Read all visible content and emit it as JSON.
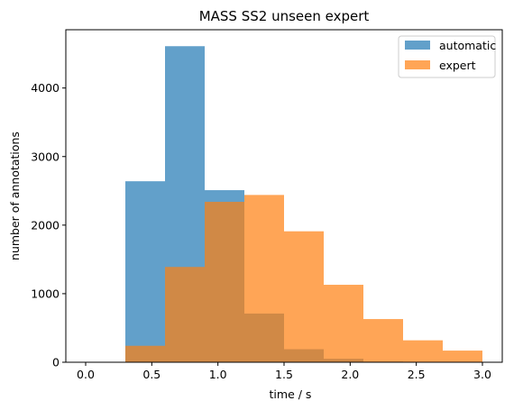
{
  "chart_data": {
    "type": "bar",
    "subtype": "overlapping-histogram",
    "title": "MASS SS2 unseen expert",
    "xlabel": "time / s",
    "ylabel": "number of annotations",
    "xlim": [
      -0.15,
      3.15
    ],
    "ylim": [
      0,
      4850
    ],
    "xticks": [
      0.0,
      0.5,
      1.0,
      1.5,
      2.0,
      2.5,
      3.0
    ],
    "xtick_labels": [
      "0.0",
      "0.5",
      "1.0",
      "1.5",
      "2.0",
      "2.5",
      "3.0"
    ],
    "yticks": [
      0,
      1000,
      2000,
      3000,
      4000
    ],
    "ytick_labels": [
      "0",
      "1000",
      "2000",
      "3000",
      "4000"
    ],
    "bin_edges": [
      0.0,
      0.3,
      0.6,
      0.9,
      1.2,
      1.5,
      1.8,
      2.1,
      2.4,
      2.7,
      3.0
    ],
    "series": [
      {
        "name": "automatic",
        "color": "#1f77b4",
        "alpha": 0.7,
        "values": [
          0,
          2640,
          4610,
          2510,
          710,
          190,
          50,
          10,
          0,
          0
        ]
      },
      {
        "name": "expert",
        "color": "#ff7f0e",
        "alpha": 0.7,
        "values": [
          0,
          240,
          1390,
          2340,
          2440,
          1910,
          1130,
          630,
          320,
          170
        ]
      }
    ],
    "legend_position": "top-right",
    "grid": false
  }
}
